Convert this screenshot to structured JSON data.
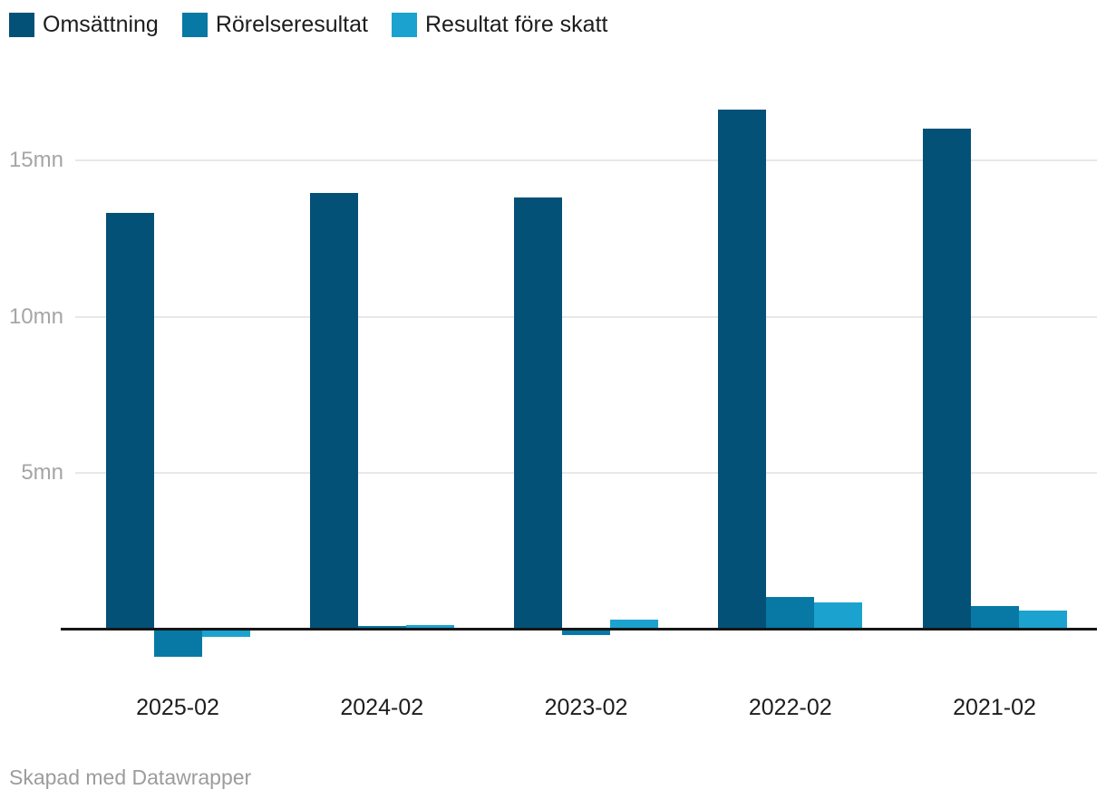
{
  "footer": {
    "credit": "Skapad med Datawrapper"
  },
  "chart_data": {
    "type": "bar",
    "title": "",
    "categories": [
      "2025-02",
      "2024-02",
      "2023-02",
      "2022-02",
      "2021-02"
    ],
    "series": [
      {
        "name": "Omsättning",
        "color": "#045177",
        "values": [
          13.3,
          13.95,
          13.8,
          16.6,
          16.0
        ]
      },
      {
        "name": "Rörelseresultat",
        "color": "#0779a4",
        "values": [
          -0.85,
          0.05,
          -0.14,
          1.0,
          0.7
        ]
      },
      {
        "name": "Resultat före skatt",
        "color": "#1ba2ce",
        "values": [
          -0.2,
          0.1,
          0.25,
          0.8,
          0.55
        ]
      }
    ],
    "unit": "mn",
    "y_ticks": [
      "5mn",
      "10mn",
      "15mn"
    ],
    "y_tick_values": [
      5,
      10,
      15
    ],
    "ylim": [
      -1.2,
      17.2
    ],
    "baseline": 0,
    "grid": "horizontal",
    "legend_position": "top-left",
    "colors": {
      "grid": "#e8e8e8",
      "axis_line": "#161616",
      "tick_text": "#a5a5a5",
      "label_text": "#1d1d1d",
      "credit_text": "#9c9c9c"
    }
  }
}
